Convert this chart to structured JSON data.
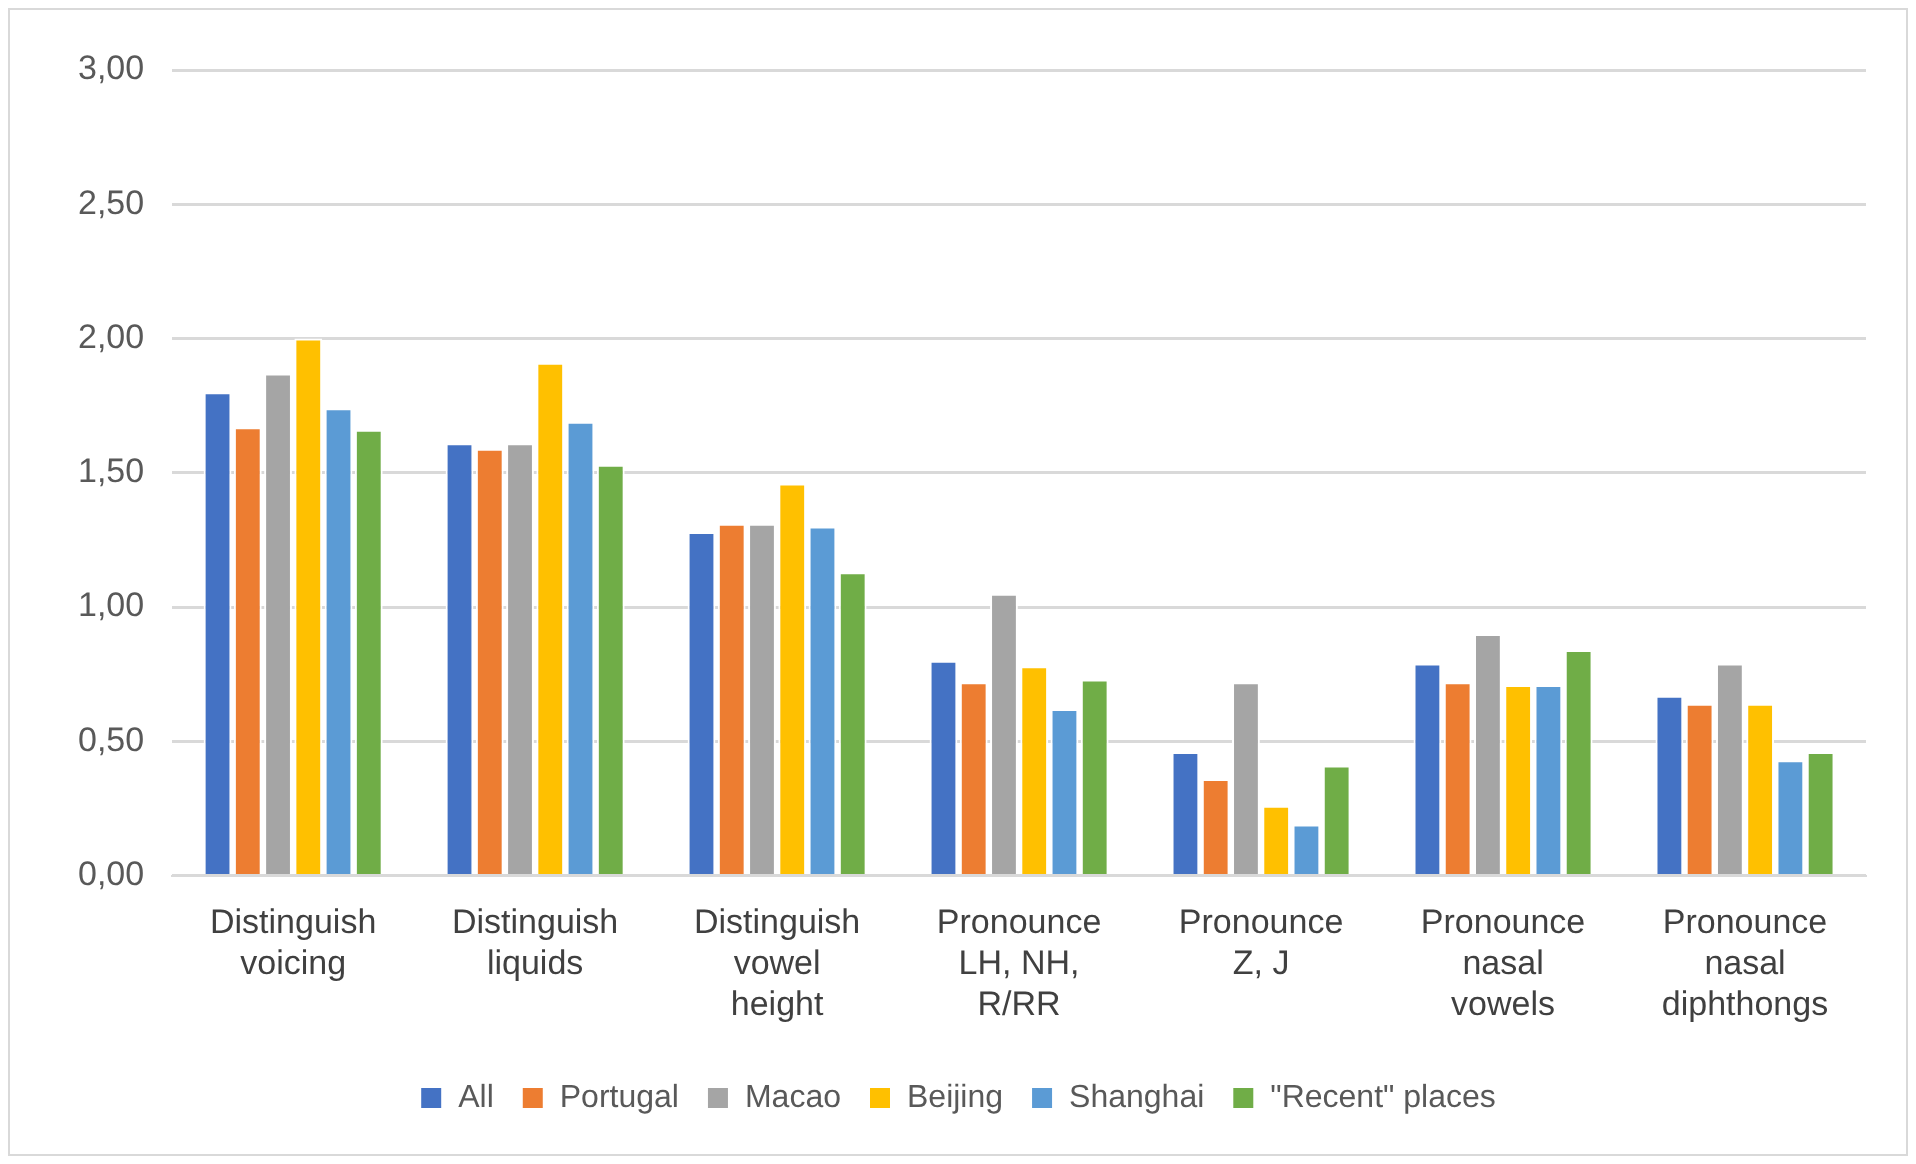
{
  "chart_data": {
    "type": "bar",
    "categories": [
      "Distinguish voicing",
      "Distinguish liquids",
      "Distinguish vowel height",
      "Pronounce LH, NH, R/RR",
      "Pronounce Z, J",
      "Pronounce nasal vowels",
      "Pronounce nasal diphthongs"
    ],
    "series": [
      {
        "name": "All",
        "color": "#4472c4",
        "values": [
          1.8,
          1.61,
          1.28,
          0.8,
          0.46,
          0.79,
          0.67
        ]
      },
      {
        "name": "Portugal",
        "color": "#ed7d31",
        "values": [
          1.67,
          1.59,
          1.31,
          0.72,
          0.36,
          0.72,
          0.64
        ]
      },
      {
        "name": "Macao",
        "color": "#a5a5a5",
        "values": [
          1.87,
          1.61,
          1.31,
          1.05,
          0.72,
          0.9,
          0.79
        ]
      },
      {
        "name": "Beijing",
        "color": "#ffc000",
        "values": [
          2.0,
          1.91,
          1.46,
          0.78,
          0.26,
          0.71,
          0.64
        ]
      },
      {
        "name": "Shanghai",
        "color": "#5b9bd5",
        "values": [
          1.74,
          1.69,
          1.3,
          0.62,
          0.19,
          0.71,
          0.43
        ]
      },
      {
        "name": "\"Recent\" places",
        "color": "#70ad47",
        "values": [
          1.66,
          1.53,
          1.13,
          0.73,
          0.41,
          0.84,
          0.46
        ]
      }
    ],
    "ylim": [
      0,
      3
    ],
    "yticks": [
      {
        "value": 0,
        "label": "0,00"
      },
      {
        "value": 0.5,
        "label": "0,50"
      },
      {
        "value": 1,
        "label": "1,00"
      },
      {
        "value": 1.5,
        "label": "1,50"
      },
      {
        "value": 2,
        "label": "2,00"
      },
      {
        "value": 2.5,
        "label": "2,50"
      },
      {
        "value": 3,
        "label": "3,00"
      }
    ],
    "grid": "y",
    "legend": "bottom"
  }
}
